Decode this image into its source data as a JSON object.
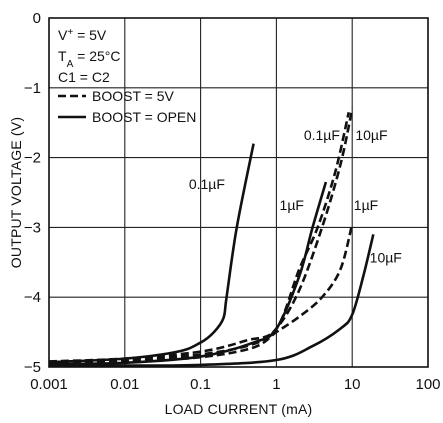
{
  "chart_data": {
    "type": "line",
    "title": "",
    "xlabel": "LOAD CURRENT (mA)",
    "ylabel": "OUTPUT VOLTAGE (V)",
    "x_scale": "log",
    "xlim": [
      0.001,
      100
    ],
    "ylim": [
      -5,
      0
    ],
    "x_ticks": [
      "0.001",
      "0.01",
      "0.1",
      "1",
      "10",
      "100"
    ],
    "y_ticks": [
      "0",
      "−1",
      "−2",
      "−3",
      "−4",
      "−5"
    ],
    "grid": true,
    "legend": {
      "placement": "top-left",
      "conditions": [
        {
          "base": "V",
          "sup": "+",
          "sub": "",
          "rest": " = 5V"
        },
        {
          "base": "T",
          "sup": "",
          "sub": "A",
          "rest": " = 25°C"
        },
        {
          "base": "C1 = C2",
          "sup": "",
          "sub": "",
          "rest": ""
        }
      ],
      "entries": [
        {
          "label": "BOOST = 5V",
          "style": "dashed"
        },
        {
          "label": "BOOST = OPEN",
          "style": "solid"
        }
      ]
    },
    "series": [
      {
        "label": "0.1µF",
        "style": "solid",
        "points": [
          [
            0.001,
            -4.93
          ],
          [
            0.01,
            -4.88
          ],
          [
            0.05,
            -4.78
          ],
          [
            0.1,
            -4.65
          ],
          [
            0.15,
            -4.5
          ],
          [
            0.2,
            -4.3
          ],
          [
            0.22,
            -4.0
          ],
          [
            0.3,
            -3.0
          ],
          [
            0.5,
            -1.8
          ]
        ]
      },
      {
        "label": "1µF",
        "style": "solid",
        "points": [
          [
            0.001,
            -4.96
          ],
          [
            0.01,
            -4.94
          ],
          [
            0.1,
            -4.85
          ],
          [
            0.5,
            -4.65
          ],
          [
            1.0,
            -4.45
          ],
          [
            2.0,
            -3.7
          ],
          [
            3.0,
            -3.0
          ],
          [
            4.5,
            -2.35
          ]
        ]
      },
      {
        "label": "10µF",
        "style": "solid",
        "points": [
          [
            0.001,
            -4.98
          ],
          [
            0.01,
            -4.98
          ],
          [
            0.1,
            -4.97
          ],
          [
            1.0,
            -4.9
          ],
          [
            3.0,
            -4.7
          ],
          [
            7.0,
            -4.45
          ],
          [
            10.0,
            -4.25
          ],
          [
            14.0,
            -3.7
          ],
          [
            19.0,
            -3.1
          ]
        ]
      },
      {
        "label": "0.1µF",
        "style": "dashed",
        "points": [
          [
            0.001,
            -4.92
          ],
          [
            0.01,
            -4.88
          ],
          [
            0.1,
            -4.78
          ],
          [
            0.4,
            -4.62
          ],
          [
            1.0,
            -4.45
          ],
          [
            2.0,
            -3.6
          ],
          [
            3.5,
            -3.0
          ],
          [
            6.0,
            -2.2
          ],
          [
            9.0,
            -1.35
          ]
        ]
      },
      {
        "label": "10µF",
        "style": "dashed",
        "points": [
          [
            0.001,
            -4.94
          ],
          [
            0.01,
            -4.9
          ],
          [
            0.1,
            -4.82
          ],
          [
            0.5,
            -4.67
          ],
          [
            1.0,
            -4.45
          ],
          [
            2.0,
            -3.9
          ],
          [
            4.0,
            -3.0
          ],
          [
            7.0,
            -2.1
          ],
          [
            10.0,
            -1.3
          ]
        ]
      },
      {
        "label": "1µF",
        "style": "dashed",
        "points": [
          [
            0.001,
            -4.95
          ],
          [
            0.01,
            -4.92
          ],
          [
            0.1,
            -4.86
          ],
          [
            0.5,
            -4.72
          ],
          [
            1.0,
            -4.5
          ],
          [
            2.0,
            -4.28
          ],
          [
            4.0,
            -4.0
          ],
          [
            7.0,
            -3.6
          ],
          [
            10.0,
            -2.95
          ]
        ]
      }
    ],
    "annotations": [
      {
        "text": "0.1µF",
        "x": 0.07,
        "y": -2.45
      },
      {
        "text": "0.1µF",
        "x": 2.3,
        "y": -1.75
      },
      {
        "text": "10µF",
        "x": 11.0,
        "y": -1.75
      },
      {
        "text": "1µF",
        "x": 1.1,
        "y": -2.75
      },
      {
        "text": "1µF",
        "x": 10.5,
        "y": -2.75
      },
      {
        "text": "10µF",
        "x": 17.0,
        "y": -3.5
      }
    ]
  }
}
